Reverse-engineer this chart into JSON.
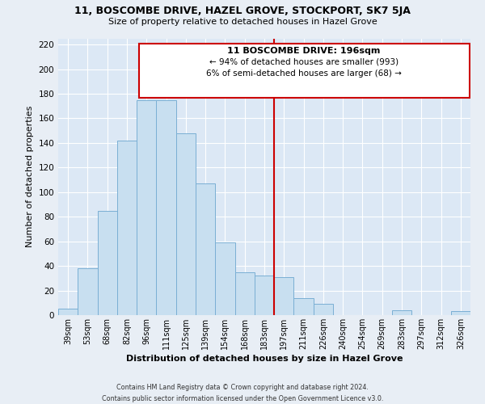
{
  "title": "11, BOSCOMBE DRIVE, HAZEL GROVE, STOCKPORT, SK7 5JA",
  "subtitle": "Size of property relative to detached houses in Hazel Grove",
  "xlabel": "Distribution of detached houses by size in Hazel Grove",
  "ylabel": "Number of detached properties",
  "footer_line1": "Contains HM Land Registry data © Crown copyright and database right 2024.",
  "footer_line2": "Contains public sector information licensed under the Open Government Licence v3.0.",
  "bar_labels": [
    "39sqm",
    "53sqm",
    "68sqm",
    "82sqm",
    "96sqm",
    "111sqm",
    "125sqm",
    "139sqm",
    "154sqm",
    "168sqm",
    "183sqm",
    "197sqm",
    "211sqm",
    "226sqm",
    "240sqm",
    "254sqm",
    "269sqm",
    "283sqm",
    "297sqm",
    "312sqm",
    "326sqm"
  ],
  "bar_heights": [
    5,
    38,
    85,
    142,
    175,
    175,
    148,
    107,
    59,
    35,
    32,
    31,
    14,
    9,
    0,
    0,
    0,
    4,
    0,
    0,
    3
  ],
  "bar_color": "#c8dff0",
  "bar_edgecolor": "#7aafd4",
  "vline_index": 11,
  "vline_color": "#cc0000",
  "annotation_title": "11 BOSCOMBE DRIVE: 196sqm",
  "annotation_line1": "← 94% of detached houses are smaller (993)",
  "annotation_line2": "6% of semi-detached houses are larger (68) →",
  "ylim": [
    0,
    225
  ],
  "yticks": [
    0,
    20,
    40,
    60,
    80,
    100,
    120,
    140,
    160,
    180,
    200,
    220
  ],
  "background_color": "#e8eef5",
  "grid_color": "#ffffff",
  "plot_bg_color": "#dce8f5"
}
